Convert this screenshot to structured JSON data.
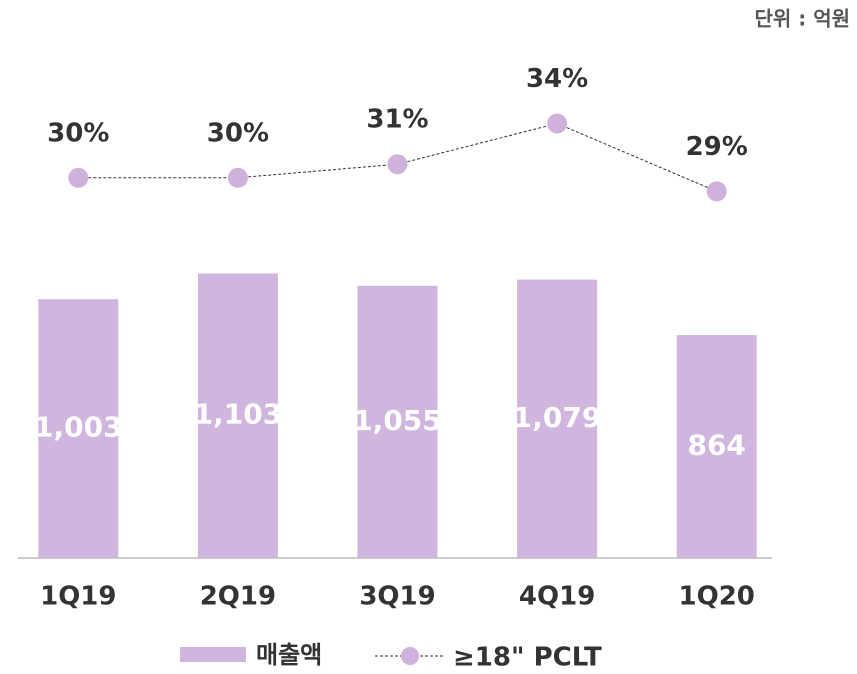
{
  "chart_data": {
    "type": "bar_line",
    "unit_note": "단위 : 억원",
    "categories": [
      "1Q19",
      "2Q19",
      "3Q19",
      "4Q19",
      "1Q20"
    ],
    "series": [
      {
        "name": "매출액",
        "type": "bar",
        "color": "#d0b5de",
        "values": [
          1003,
          1103,
          1055,
          1079,
          864
        ],
        "value_labels": [
          "1,003",
          "1,103",
          "1,055",
          "1,079",
          "864"
        ]
      },
      {
        "name": "≥18\" PCLT",
        "type": "line",
        "axis": "y2",
        "color": "#cfb2dc",
        "values": [
          30,
          30,
          31,
          34,
          29
        ],
        "value_labels": [
          "30%",
          "30%",
          "31%",
          "34%",
          "29%"
        ]
      }
    ],
    "ylim": [
      0,
      2000
    ],
    "y2lim": [
      2,
      40
    ]
  }
}
